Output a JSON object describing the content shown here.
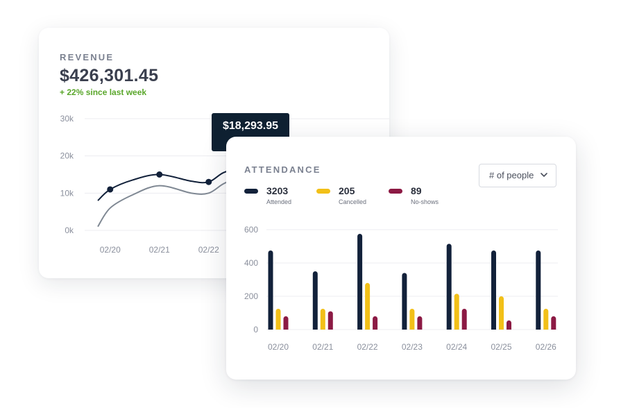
{
  "revenue": {
    "title": "REVENUE",
    "value": "$426,301.45",
    "delta": "+ 22% since last week",
    "tooltip": "$18,293.95"
  },
  "attendance": {
    "title": "ATTENDANCE",
    "dropdown": "# of people",
    "legend": [
      {
        "value": "3203",
        "label": "Attended"
      },
      {
        "value": "205",
        "label": "Cancelled"
      },
      {
        "value": "89",
        "label": "No-shows"
      }
    ]
  },
  "colors": {
    "navy": "#12213a",
    "grey_line": "#7f8893",
    "yellow": "#f2c018",
    "crimson": "#8c1a44",
    "green": "#59a62a"
  },
  "chart_data": [
    {
      "type": "line",
      "title": "REVENUE",
      "x": [
        "02/20",
        "02/21",
        "02/22"
      ],
      "y_ticks": [
        "0k",
        "10k",
        "20k",
        "30k"
      ],
      "ylim": [
        0,
        30000
      ],
      "grid": true,
      "series": [
        {
          "values": [
            11000,
            15000,
            13000
          ],
          "marked": true
        },
        {
          "values": [
            1000,
            12000,
            10000
          ],
          "marked": false
        }
      ],
      "curve": [
        {
          "x": 0,
          "y": 8000
        },
        {
          "x": 0.25,
          "y": 11000
        },
        {
          "x": 0.7,
          "y": 13500
        },
        {
          "x": 1.25,
          "y": 15000
        },
        {
          "x": 1.9,
          "y": 13200
        },
        {
          "x": 2.25,
          "y": 13000
        },
        {
          "x": 2.55,
          "y": 15500
        },
        {
          "x": 2.9,
          "y": 16800
        },
        {
          "x": 3.2,
          "y": 17200
        }
      ],
      "curve2": [
        {
          "x": 0,
          "y": 1000
        },
        {
          "x": 0.25,
          "y": 6000
        },
        {
          "x": 0.7,
          "y": 9500
        },
        {
          "x": 1.25,
          "y": 12000
        },
        {
          "x": 1.9,
          "y": 10000
        },
        {
          "x": 2.25,
          "y": 10000
        },
        {
          "x": 2.55,
          "y": 12500
        },
        {
          "x": 2.9,
          "y": 14500
        },
        {
          "x": 3.2,
          "y": 15000
        }
      ],
      "markers": [
        {
          "x": 0.25,
          "y": 11000
        },
        {
          "x": 1.25,
          "y": 15000
        },
        {
          "x": 2.25,
          "y": 13000
        }
      ]
    },
    {
      "type": "bar",
      "title": "ATTENDANCE",
      "categories": [
        "02/20",
        "02/21",
        "02/22",
        "02/23",
        "02/24",
        "02/25",
        "02/26"
      ],
      "y_ticks": [
        "0",
        "200",
        "400",
        "600"
      ],
      "ylim": [
        0,
        600
      ],
      "grid": true,
      "series": [
        {
          "name": "Attended",
          "values": [
            475,
            350,
            575,
            340,
            515,
            475,
            475
          ]
        },
        {
          "name": "Cancelled",
          "values": [
            125,
            125,
            280,
            125,
            215,
            200,
            125
          ]
        },
        {
          "name": "No-shows",
          "values": [
            80,
            110,
            80,
            80,
            125,
            55,
            80
          ]
        }
      ]
    }
  ]
}
